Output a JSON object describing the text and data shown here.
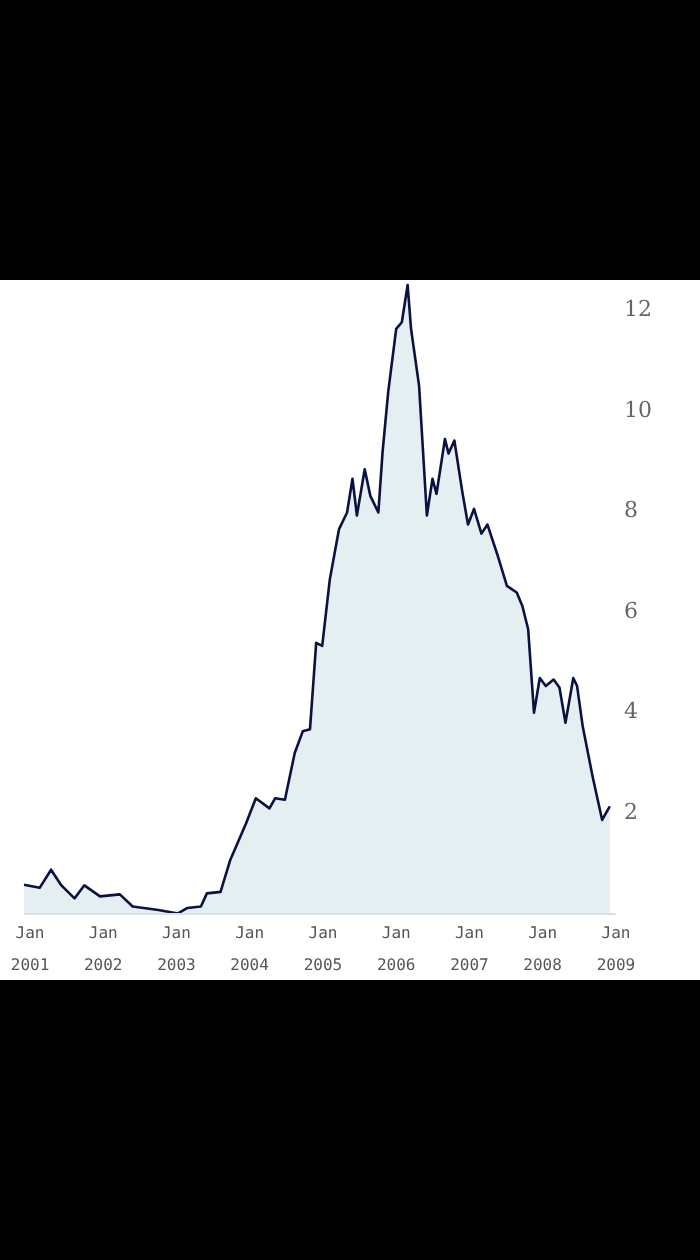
{
  "chart_data": {
    "type": "area",
    "x": [
      "2000-12-02",
      "2001-02-18",
      "2001-04-16",
      "2001-06-04",
      "2001-08-11",
      "2001-09-29",
      "2001-12-16",
      "2002-03-25",
      "2002-05-28",
      "2002-10-03",
      "2003-01-09",
      "2003-02-25",
      "2003-05-03",
      "2003-06-02",
      "2003-08-09",
      "2003-09-27",
      "2003-12-14",
      "2004-02-01",
      "2004-04-09",
      "2004-05-07",
      "2004-06-25",
      "2004-08-13",
      "2004-09-22",
      "2004-10-28",
      "2004-11-28",
      "2004-12-28",
      "2005-02-04",
      "2005-03-22",
      "2005-05-01",
      "2005-05-28",
      "2005-06-19",
      "2005-07-28",
      "2005-08-25",
      "2005-10-04",
      "2005-10-25",
      "2005-11-22",
      "2006-01-01",
      "2006-01-29",
      "2006-02-27",
      "2006-03-16",
      "2006-04-25",
      "2006-06-03",
      "2006-07-01",
      "2006-07-21",
      "2006-09-01",
      "2006-09-19",
      "2006-10-18",
      "2006-11-27",
      "2006-12-25",
      "2007-01-24",
      "2007-03-02",
      "2007-04-01",
      "2007-05-19",
      "2007-07-07",
      "2007-08-25",
      "2007-09-22",
      "2007-10-21",
      "2007-11-19",
      "2007-12-18",
      "2008-01-17",
      "2008-02-25",
      "2008-03-25",
      "2008-04-24",
      "2008-06-02",
      "2008-06-21",
      "2008-07-19",
      "2008-09-06",
      "2008-10-24",
      "2008-12-01"
    ],
    "series": [
      {
        "color": "#0b1140",
        "values": [
          0.58,
          0.52,
          0.88,
          0.58,
          0.31,
          0.57,
          0.35,
          0.39,
          0.15,
          0.08,
          0.01,
          0.12,
          0.15,
          0.41,
          0.44,
          1.08,
          1.8,
          2.3,
          2.1,
          2.3,
          2.27,
          3.2,
          3.63,
          3.67,
          5.39,
          5.33,
          6.65,
          7.65,
          7.98,
          8.65,
          7.92,
          8.84,
          8.31,
          7.98,
          9.18,
          10.37,
          11.63,
          11.76,
          12.5,
          11.63,
          10.5,
          7.92,
          8.65,
          8.35,
          9.44,
          9.15,
          9.41,
          8.38,
          7.74,
          8.05,
          7.56,
          7.74,
          7.16,
          6.52,
          6.39,
          6.12,
          5.66,
          4.0,
          4.69,
          4.53,
          4.66,
          4.5,
          3.8,
          4.69,
          4.53,
          3.73,
          2.74,
          1.87,
          2.14
        ]
      }
    ],
    "xticks": [
      {
        "value": "2001-01-01",
        "label": "Jan 2001"
      },
      {
        "value": "2002-01-01",
        "label": "Jan 2002"
      },
      {
        "value": "2003-01-01",
        "label": "Jan 2003"
      },
      {
        "value": "2004-01-01",
        "label": "Jan 2004"
      },
      {
        "value": "2005-01-01",
        "label": "Jan 2005"
      },
      {
        "value": "2006-01-01",
        "label": "Jan 2006"
      },
      {
        "value": "2007-01-01",
        "label": "Jan 2007"
      },
      {
        "value": "2008-01-01",
        "label": "Jan 2008"
      },
      {
        "value": "2009-01-01",
        "label": "Jan 2009"
      }
    ],
    "xlim": [
      "2000-12-02",
      "2009-01-01"
    ],
    "ylim": [
      0,
      12.6
    ],
    "yticks": [
      2,
      4,
      6,
      8,
      10,
      12
    ]
  }
}
